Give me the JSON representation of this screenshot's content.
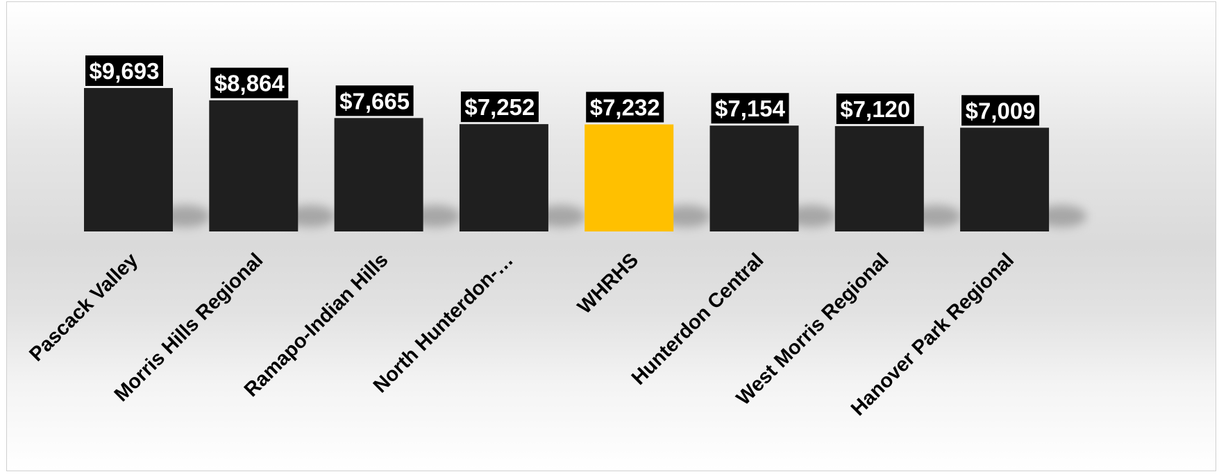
{
  "chart_data": {
    "type": "bar",
    "title": "",
    "xlabel": "",
    "ylabel": "",
    "categories": [
      "Pascack Valley",
      "Morris Hills Regional",
      "Ramapo-Indian Hills",
      "North Hunterdon-…",
      "WHRHS",
      "Hunterdon Central",
      "West Morris Regional",
      "Hanover Park Regional"
    ],
    "values": [
      9693,
      8864,
      7665,
      7252,
      7232,
      7154,
      7120,
      7009
    ],
    "data_labels": [
      "$9,693",
      "$8,864",
      "$7,665",
      "$7,252",
      "$7,232",
      "$7,154",
      "$7,120",
      "$7,009"
    ],
    "highlight_index": 4,
    "colors": {
      "bar": "#1f1f1f",
      "highlight": "#ffc000",
      "label_background": "#000000",
      "label_text": "#ffffff",
      "category_text": "#000000"
    },
    "ylim": [
      0,
      9693
    ],
    "grid": false,
    "legend": "none"
  }
}
